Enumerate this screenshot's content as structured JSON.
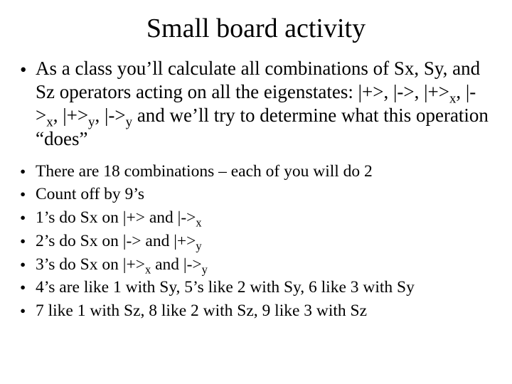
{
  "title": "Small board activity",
  "main_bullet": "•",
  "main_item_html": "As a class you’ll calculate all combinations of Sx, Sy, and Sz operators acting on all the eigenstates: |+>, |->, |+><sub>x</sub>, |-><sub>x</sub>, |+><sub>y</sub>, |-><sub>y</sub> and we’ll try to determine what this operation “does”",
  "sub_items_html": [
    "There are 18 combinations – each of you will do 2",
    "Count off by 9’s",
    "1’s do Sx on |+> and |-><sub>x</sub>",
    "2’s do Sx on |-> and |+><sub>y</sub>",
    "3’s do Sx on |+><sub>x</sub> and |-><sub>y</sub>",
    "4’s are like 1 with Sy, 5’s like 2 with Sy, 6 like 3 with Sy",
    "7 like 1 with Sz, 8 like 2 with Sz, 9 like 3 with Sz"
  ],
  "colors": {
    "background": "#ffffff",
    "text": "#000000"
  },
  "fonts": {
    "family": "Times New Roman",
    "title_size_pt": 28,
    "main_size_pt": 20,
    "sub_size_pt": 18
  }
}
